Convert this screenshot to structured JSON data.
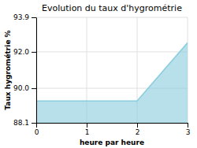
{
  "chart_data": {
    "type": "area",
    "title": "Evolution du taux d'hygrométrie",
    "xlabel": "heure par heure",
    "ylabel": "Taux hygrométrie %",
    "x": [
      0,
      2,
      3
    ],
    "values": [
      89.3,
      89.3,
      92.5
    ],
    "color": "#88ccdd",
    "xlim": [
      0,
      3
    ],
    "ylim": [
      88.1,
      93.9
    ],
    "xticks": [
      0,
      1,
      2,
      3
    ],
    "yticks": [
      88.1,
      {
        "value": 90.0,
        "label": "90.0"
      },
      {
        "value": 92.0,
        "label": "92.0"
      },
      93.9
    ],
    "grid": true
  }
}
